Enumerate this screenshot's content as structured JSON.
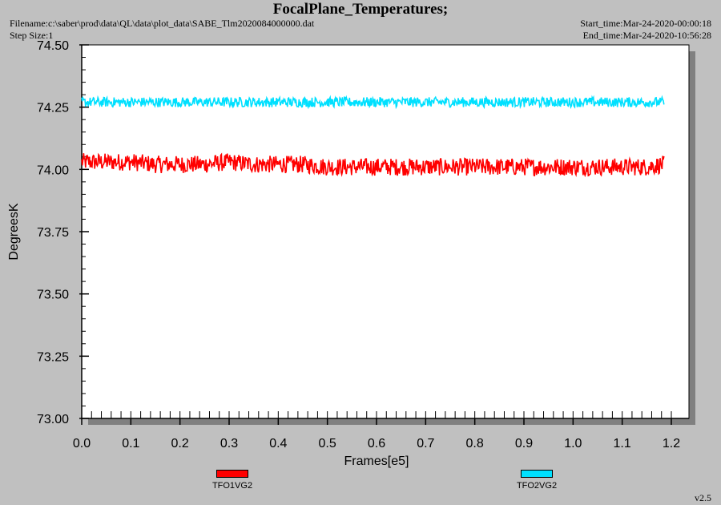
{
  "header": {
    "title": "FocalPlane_Temperatures;",
    "filename": "Filename:c:\\saber\\prod\\data\\QL\\data\\plot_data\\SABE_Tlm2020084000000.dat",
    "step_size": "Step Size:1",
    "start_time": "Start_time:Mar-24-2020-00:00:18",
    "end_time": "End_time:Mar-24-2020-10:56:28"
  },
  "footer": {
    "version": "v2.5"
  },
  "chart_data": {
    "type": "line",
    "title": "FocalPlane_Temperatures;",
    "xlabel": "Frames[e5]",
    "ylabel": "DegreesK",
    "xlim": [
      0.0,
      1.2
    ],
    "ylim": [
      73.0,
      74.5
    ],
    "x_ticks": [
      "0.0",
      "0.1",
      "0.2",
      "0.3",
      "0.4",
      "0.5",
      "0.6",
      "0.7",
      "0.8",
      "0.9",
      "1.0",
      "1.1",
      "1.2"
    ],
    "y_ticks": [
      "73.00",
      "73.25",
      "73.50",
      "73.75",
      "74.00",
      "74.25",
      "74.50"
    ],
    "grid": false,
    "legend": "bottom",
    "series": [
      {
        "name": "TFO1VG2",
        "color": "#ff0000",
        "x": [
          0.0,
          0.05,
          0.1,
          0.15,
          0.2,
          0.25,
          0.3,
          0.35,
          0.4,
          0.45,
          0.5,
          0.55,
          0.6,
          0.65,
          0.7,
          0.75,
          0.8,
          0.85,
          0.9,
          0.95,
          1.0,
          1.05,
          1.1,
          1.15,
          1.185
        ],
        "y": [
          74.03,
          74.03,
          74.03,
          74.02,
          74.02,
          74.02,
          74.03,
          74.02,
          74.02,
          74.02,
          74.01,
          74.01,
          74.01,
          74.01,
          74.01,
          74.01,
          74.01,
          74.01,
          74.01,
          74.01,
          74.01,
          74.01,
          74.01,
          74.01,
          74.02
        ],
        "spread": 0.035
      },
      {
        "name": "TFO2VG2",
        "color": "#00e0ff",
        "x": [
          0.0,
          0.05,
          0.1,
          0.15,
          0.2,
          0.25,
          0.3,
          0.35,
          0.4,
          0.45,
          0.5,
          0.55,
          0.6,
          0.65,
          0.7,
          0.75,
          0.8,
          0.85,
          0.9,
          0.95,
          1.0,
          1.05,
          1.1,
          1.15,
          1.185
        ],
        "y": [
          74.27,
          74.27,
          74.27,
          74.27,
          74.27,
          74.27,
          74.27,
          74.27,
          74.27,
          74.27,
          74.27,
          74.27,
          74.27,
          74.27,
          74.27,
          74.27,
          74.27,
          74.27,
          74.27,
          74.27,
          74.27,
          74.27,
          74.27,
          74.27,
          74.27
        ],
        "spread": 0.02
      }
    ]
  }
}
